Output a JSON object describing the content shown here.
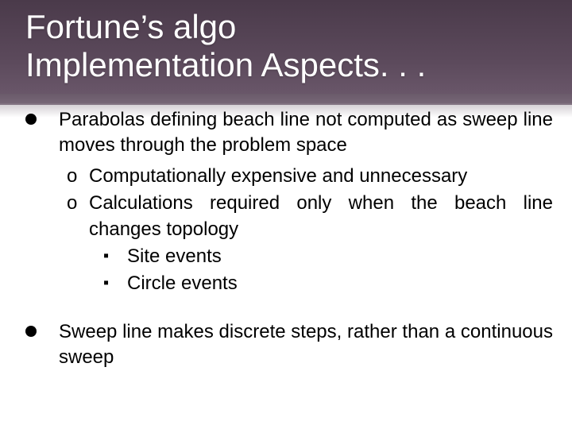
{
  "colors": {
    "headerGradientTop": "#4a3a4a",
    "headerGradientBottom": "#6d5a6d",
    "titleText": "#ffffff",
    "bodyText": "#000000",
    "background": "#ffffff"
  },
  "typography": {
    "titleFontSize": 42,
    "bodyFontSize": 24,
    "fontFamily": "Arial"
  },
  "title": "Fortune’s algo\nImplementation Aspects. . .",
  "bullets": [
    {
      "text": "Parabolas defining beach line not computed as sweep line moves through the problem space",
      "subs": [
        {
          "text": "Computationally expensive and unnecessary"
        },
        {
          "text": "Calculations required only when the beach line changes topology",
          "subs": [
            {
              "text": "Site events"
            },
            {
              "text": "Circle events"
            }
          ]
        }
      ]
    },
    {
      "text": "Sweep line makes discrete steps, rather than a continuous sweep"
    }
  ],
  "markers": {
    "level2": "o",
    "level3": "▪"
  }
}
